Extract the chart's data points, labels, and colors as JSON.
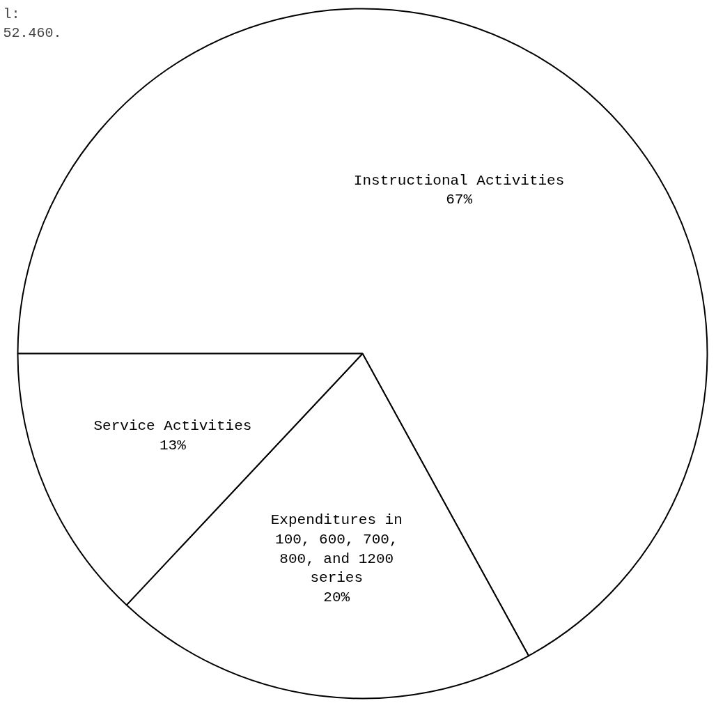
{
  "chart_data": {
    "type": "pie",
    "categories": [
      "Instructional Activities",
      "Expenditures in\n100, 600, 700,\n800, and 1200\nseries",
      "Service Activities"
    ],
    "values": [
      67,
      20,
      13
    ],
    "value_labels": [
      "67%",
      "20%",
      "13%"
    ],
    "colors": [
      "#ffffff",
      "#ffffff",
      "#ffffff"
    ],
    "annotations": [
      "l:\n52.460."
    ]
  }
}
